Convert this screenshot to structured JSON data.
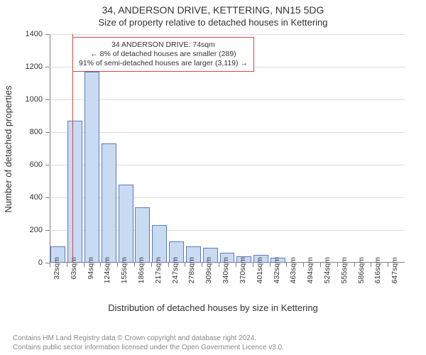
{
  "titles": {
    "main": "34, ANDERSON DRIVE, KETTERING, NN15 5DG",
    "sub": "Size of property relative to detached houses in Kettering",
    "y_axis": "Number of detached properties",
    "x_axis": "Distribution of detached houses by size in Kettering"
  },
  "chart": {
    "type": "histogram",
    "ylim_max": 1400,
    "ytick_step": 200,
    "y_ticks": [
      0,
      200,
      400,
      600,
      800,
      1000,
      1200,
      1400
    ],
    "bar_fill": "#c9daf3",
    "bar_stroke": "#5a7db8",
    "grid_color": "#dcdcdc",
    "axis_color": "#808080",
    "background_color": "#ffffff",
    "categories": [
      "32sqm",
      "63sqm",
      "94sqm",
      "124sqm",
      "155sqm",
      "186sqm",
      "217sqm",
      "247sqm",
      "278sqm",
      "309sqm",
      "340sqm",
      "370sqm",
      "401sqm",
      "432sqm",
      "463sqm",
      "494sqm",
      "524sqm",
      "555sqm",
      "586sqm",
      "616sqm",
      "647sqm"
    ],
    "values": [
      100,
      870,
      1170,
      730,
      480,
      340,
      230,
      130,
      100,
      90,
      60,
      40,
      50,
      30,
      0,
      0,
      0,
      0,
      0,
      0,
      0
    ],
    "bar_width_ratio": 0.88
  },
  "highlight": {
    "color": "#c94a4a",
    "after_category_index": 1,
    "lines": [
      "34 ANDERSON DRIVE: 74sqm",
      "← 8% of detached houses are smaller (289)",
      "91% of semi-detached houses are larger (3,119) →"
    ]
  },
  "footer": {
    "line1": "Contains HM Land Registry data © Crown copyright and database right 2024.",
    "line2": "Contains public sector information licensed under the Open Government Licence v3.0."
  }
}
